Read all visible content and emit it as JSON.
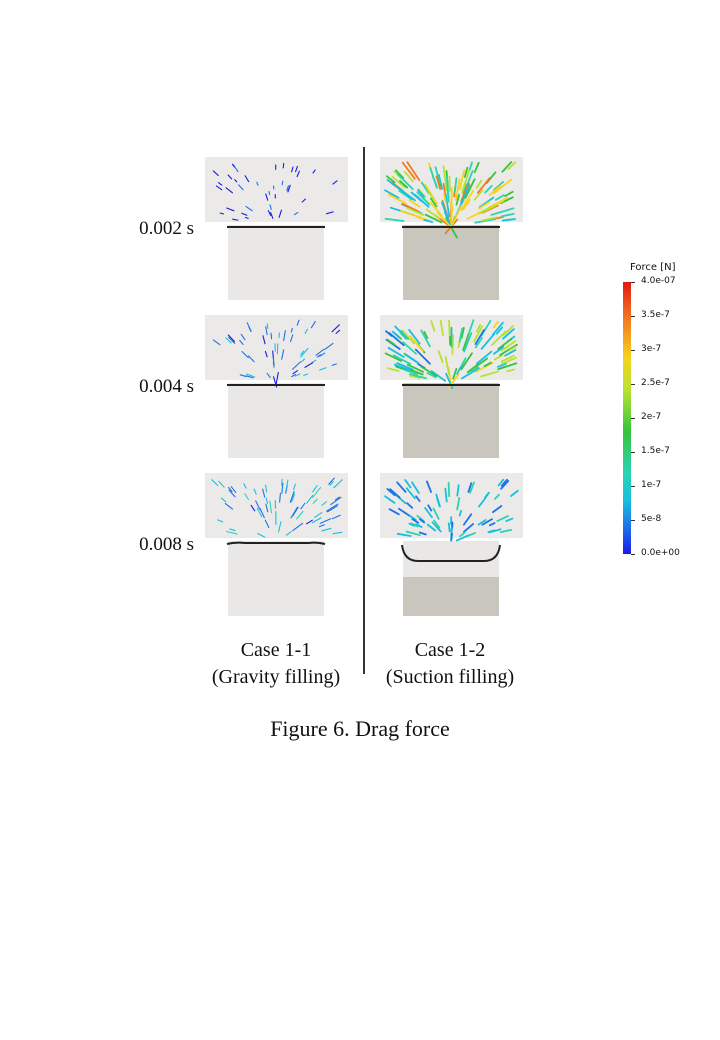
{
  "rows": [
    {
      "time": "0.002 s"
    },
    {
      "time": "0.004 s"
    },
    {
      "time": "0.008 s"
    }
  ],
  "cases": [
    {
      "name": "Case 1-1",
      "subtitle": "(Gravity filling)"
    },
    {
      "name": "Case 1-2",
      "subtitle": "(Suction filling)"
    }
  ],
  "caption": "Figure 6. Drag force",
  "colorbar": {
    "title": "Force [N]",
    "ticks": [
      "4.0e-07",
      "3.5e-7",
      "3e-7",
      "2.5e-7",
      "2e-7",
      "1.5e-7",
      "1e-7",
      "5e-8",
      "0.0e+00"
    ],
    "colors": {
      "max": "#e01a14",
      "high": "#f6d41d",
      "mid": "#35c43a",
      "low": "#17c0e0",
      "min": "#1a1ae8"
    }
  }
}
